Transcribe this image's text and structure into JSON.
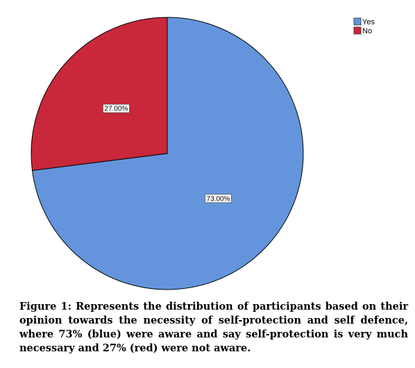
{
  "chart_data": {
    "type": "pie",
    "categories": [
      "Yes",
      "No"
    ],
    "values": [
      73.0,
      27.0
    ],
    "data_labels": [
      "73.00%",
      "27.00%"
    ],
    "colors": [
      "#6495DC",
      "#C8283A"
    ],
    "start_angle_deg": 0,
    "direction": "clockwise",
    "legend": {
      "placement": "top-right",
      "entries": [
        "Yes",
        "No"
      ]
    },
    "title": ""
  },
  "caption": {
    "label": "Figure 1:",
    "text": " Represents the distribution of participants based on their opinion towards the necessity of self-protection and self defence, where 73% (blue) were aware and say self-protection is very much necessary and 27% (red) were not aware."
  }
}
